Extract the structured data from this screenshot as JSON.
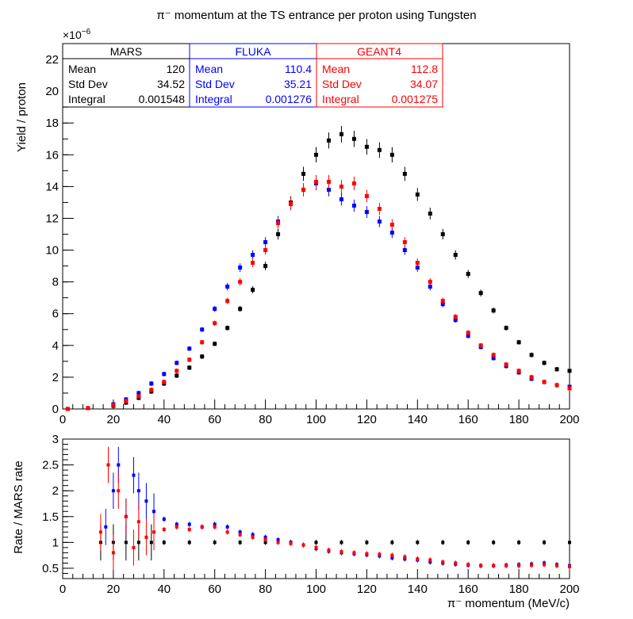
{
  "chart_data": [
    {
      "type": "scatter",
      "panel": "upper",
      "title": "π⁻ momentum at the TS entrance per proton using Tungsten",
      "xlabel": "",
      "ylabel": "Yield / proton",
      "y_exponent_label": "×10",
      "y_exponent_power": "−6",
      "xlim": [
        0,
        200
      ],
      "ylim": [
        0,
        23
      ],
      "x_ticks": [
        0,
        20,
        40,
        60,
        80,
        100,
        120,
        140,
        160,
        180,
        200
      ],
      "y_ticks": [
        0,
        2,
        4,
        6,
        8,
        10,
        12,
        14,
        16,
        18,
        20,
        22
      ],
      "grid": false,
      "series": [
        {
          "name": "MARS",
          "color": "#000000",
          "x": [
            2,
            10,
            20,
            25,
            30,
            35,
            40,
            45,
            50,
            55,
            60,
            65,
            70,
            75,
            80,
            85,
            90,
            95,
            100,
            105,
            110,
            115,
            120,
            125,
            130,
            135,
            140,
            145,
            150,
            155,
            160,
            165,
            170,
            175,
            180,
            185,
            190,
            195,
            200
          ],
          "y": [
            0,
            0.05,
            0.2,
            0.4,
            0.7,
            1.1,
            1.6,
            2.1,
            2.6,
            3.3,
            4.1,
            5.1,
            6.3,
            7.5,
            9.0,
            11.0,
            13.0,
            14.8,
            16.0,
            16.9,
            17.3,
            17.0,
            16.5,
            16.3,
            16.0,
            14.8,
            13.5,
            12.3,
            11.0,
            9.7,
            8.5,
            7.3,
            6.2,
            5.1,
            4.2,
            3.4,
            2.9,
            2.5,
            2.4
          ],
          "stats": {
            "mean_label": "Mean",
            "mean": "120",
            "std_label": "Std Dev",
            "std": "34.52",
            "integral_label": "Integral",
            "integral": "0.001548"
          }
        },
        {
          "name": "FLUKA",
          "color": "#0000ff",
          "x": [
            2,
            10,
            20,
            25,
            30,
            35,
            40,
            45,
            50,
            55,
            60,
            65,
            70,
            75,
            80,
            85,
            90,
            95,
            100,
            105,
            110,
            115,
            120,
            125,
            130,
            135,
            140,
            145,
            150,
            155,
            160,
            165,
            170,
            175,
            180,
            185,
            190,
            195,
            200
          ],
          "y": [
            0,
            0.05,
            0.3,
            0.6,
            1.0,
            1.6,
            2.2,
            2.9,
            3.8,
            5.0,
            6.3,
            7.7,
            8.9,
            9.7,
            10.5,
            11.8,
            12.9,
            13.8,
            14.2,
            13.8,
            13.2,
            12.8,
            12.4,
            11.8,
            11.1,
            10.0,
            8.9,
            7.7,
            6.6,
            5.6,
            4.6,
            3.9,
            3.2,
            2.7,
            2.3,
            1.9,
            1.7,
            1.5,
            1.4
          ],
          "stats": {
            "mean_label": "Mean",
            "mean": "110.4",
            "std_label": "Std Dev",
            "std": "35.21",
            "integral_label": "Integral",
            "integral": "0.001276"
          }
        },
        {
          "name": "GEANT4",
          "color": "#ff0000",
          "x": [
            2,
            10,
            20,
            25,
            30,
            35,
            40,
            45,
            50,
            55,
            60,
            65,
            70,
            75,
            80,
            85,
            90,
            95,
            100,
            105,
            110,
            115,
            120,
            125,
            130,
            135,
            140,
            145,
            150,
            155,
            160,
            165,
            170,
            175,
            180,
            185,
            190,
            195,
            200
          ],
          "y": [
            0,
            0.05,
            0.25,
            0.5,
            0.8,
            1.2,
            1.7,
            2.4,
            3.1,
            4.2,
            5.4,
            6.8,
            8.0,
            9.2,
            10.0,
            11.7,
            12.9,
            13.8,
            14.3,
            14.3,
            14.0,
            14.2,
            13.4,
            12.6,
            11.6,
            10.5,
            9.2,
            8.0,
            6.8,
            5.8,
            4.8,
            4.0,
            3.4,
            2.8,
            2.4,
            2.0,
            1.7,
            1.5,
            1.3
          ],
          "stats": {
            "mean_label": "Mean",
            "mean": "112.8",
            "std_label": "Std Dev",
            "std": "34.07",
            "integral_label": "Integral",
            "integral": "0.001275"
          }
        }
      ]
    },
    {
      "type": "scatter",
      "panel": "lower",
      "title": "",
      "xlabel": "π⁻ momentum (MeV/c)",
      "ylabel": "Rate / MARS rate",
      "xlim": [
        0,
        200
      ],
      "ylim": [
        0.3,
        3
      ],
      "x_ticks": [
        0,
        20,
        40,
        60,
        80,
        100,
        120,
        140,
        160,
        180,
        200
      ],
      "y_ticks": [
        0.5,
        1,
        1.5,
        2,
        2.5,
        3
      ],
      "y_tick_labels": [
        "0.5",
        "1",
        "1.5",
        "2",
        "2.5",
        "3"
      ],
      "grid": false,
      "series": [
        {
          "name": "MARS",
          "color": "#000000",
          "x": [
            15,
            20,
            25,
            30,
            35,
            40,
            50,
            60,
            70,
            80,
            90,
            100,
            110,
            120,
            130,
            140,
            150,
            160,
            170,
            180,
            190,
            200
          ],
          "y": [
            1,
            1,
            1,
            1,
            1,
            1,
            1,
            1,
            1,
            1,
            1,
            1,
            1,
            1,
            1,
            1,
            1,
            1,
            1,
            1,
            1,
            1
          ]
        },
        {
          "name": "FLUKA",
          "color": "#0000ff",
          "x": [
            17,
            20,
            22,
            25,
            28,
            30,
            33,
            36,
            40,
            45,
            50,
            55,
            60,
            65,
            70,
            75,
            80,
            85,
            90,
            95,
            100,
            105,
            110,
            115,
            120,
            125,
            130,
            135,
            140,
            145,
            150,
            155,
            160,
            165,
            170,
            175,
            180,
            185,
            190,
            195,
            200
          ],
          "y": [
            1.3,
            2.0,
            2.5,
            1.5,
            2.3,
            2.0,
            1.8,
            1.6,
            1.45,
            1.35,
            1.35,
            1.3,
            1.35,
            1.3,
            1.2,
            1.15,
            1.1,
            1.05,
            1.0,
            0.95,
            0.88,
            0.83,
            0.8,
            0.78,
            0.76,
            0.74,
            0.7,
            0.68,
            0.66,
            0.62,
            0.6,
            0.58,
            0.56,
            0.55,
            0.55,
            0.56,
            0.57,
            0.58,
            0.6,
            0.57,
            0.55
          ]
        },
        {
          "name": "GEANT4",
          "color": "#ff0000",
          "x": [
            15,
            18,
            20,
            22,
            25,
            28,
            30,
            33,
            36,
            40,
            45,
            50,
            55,
            60,
            65,
            70,
            75,
            80,
            85,
            90,
            95,
            100,
            105,
            110,
            115,
            120,
            125,
            130,
            135,
            140,
            145,
            150,
            155,
            160,
            165,
            170,
            175,
            180,
            185,
            190,
            195,
            200
          ],
          "y": [
            1.2,
            2.5,
            0.8,
            2.0,
            1.5,
            0.9,
            1.4,
            1.1,
            1.2,
            1.25,
            1.3,
            1.25,
            1.3,
            1.3,
            1.2,
            1.15,
            1.1,
            1.05,
            1.0,
            0.98,
            0.95,
            0.9,
            0.85,
            0.82,
            0.8,
            0.78,
            0.77,
            0.75,
            0.72,
            0.68,
            0.66,
            0.62,
            0.6,
            0.57,
            0.55,
            0.55,
            0.55,
            0.55,
            0.56,
            0.57,
            0.55,
            0.53
          ]
        }
      ]
    }
  ]
}
